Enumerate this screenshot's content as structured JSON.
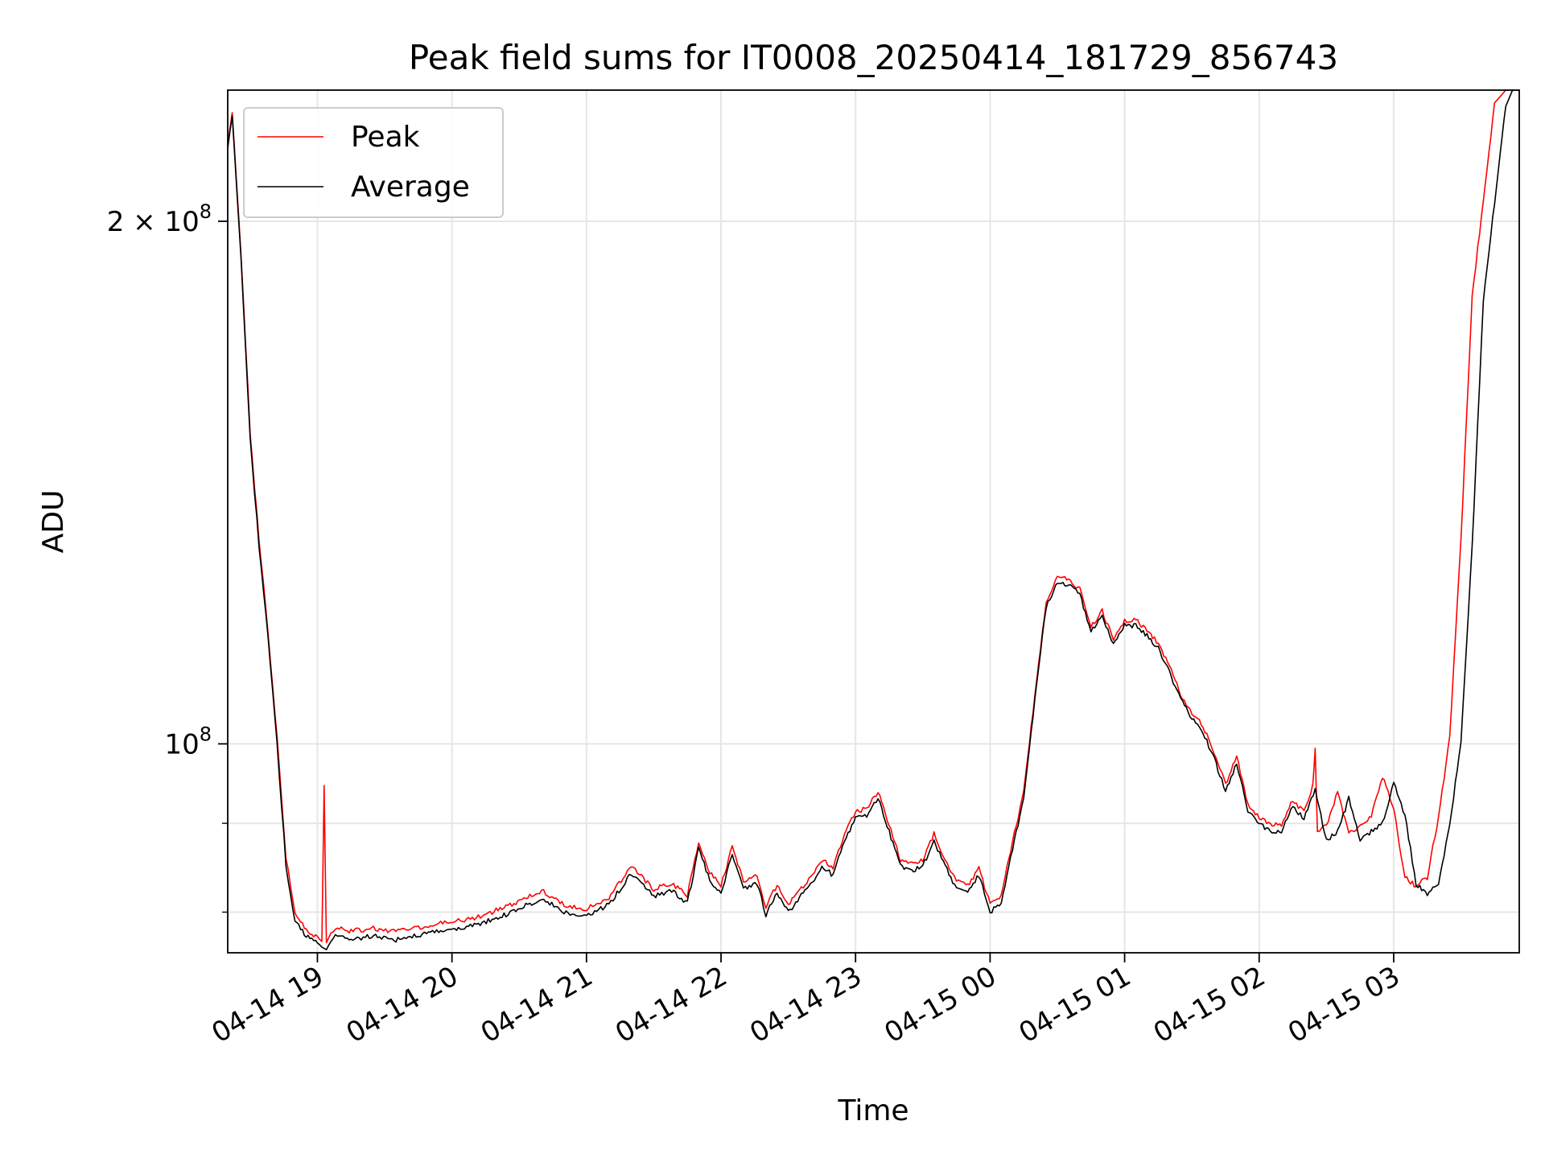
{
  "chart_data": {
    "type": "line",
    "title": "Peak field sums for IT0008_20250414_181729_856743",
    "xlabel": "Time",
    "ylabel": "ADU",
    "yscale": "log",
    "grid": true,
    "legend_placement": "top-left",
    "x_ticks": [
      "04-14 19",
      "04-14 20",
      "04-14 21",
      "04-14 22",
      "04-14 23",
      "04-15 00",
      "04-15 01",
      "04-15 02",
      "04-15 03"
    ],
    "x_tick_times": [
      "2025-04-14 19:00",
      "2025-04-14 20:00",
      "2025-04-14 21:00",
      "2025-04-14 22:00",
      "2025-04-14 23:00",
      "2025-04-15 00:00",
      "2025-04-15 01:00",
      "2025-04-15 02:00",
      "2025-04-15 03:00"
    ],
    "xlim": [
      "2025-04-14 18:20",
      "2025-04-15 03:56"
    ],
    "y_ticks": [
      {
        "value": 100000000,
        "mantissa": "",
        "base": "10",
        "exp": "8"
      },
      {
        "value": 200000000,
        "mantissa": "2 × ",
        "base": "10",
        "exp": "8"
      }
    ],
    "ylim": [
      75800000,
      238000000
    ],
    "minor_y_ticks": [
      80000000,
      90000000
    ],
    "series": [
      {
        "name": "Average",
        "color": "#000000",
        "x": [
          "2025-04-14 18:20",
          "2025-04-14 18:22",
          "2025-04-14 18:26",
          "2025-04-14 18:30",
          "2025-04-14 18:34",
          "2025-04-14 18:38",
          "2025-04-14 18:42",
          "2025-04-14 18:46",
          "2025-04-14 18:50",
          "2025-04-14 18:55",
          "2025-04-14 19:00",
          "2025-04-14 19:04",
          "2025-04-14 19:08",
          "2025-04-14 19:15",
          "2025-04-14 19:25",
          "2025-04-14 19:35",
          "2025-04-14 19:45",
          "2025-04-14 19:55",
          "2025-04-14 20:10",
          "2025-04-14 20:25",
          "2025-04-14 20:40",
          "2025-04-14 20:50",
          "2025-04-14 21:00",
          "2025-04-14 21:10",
          "2025-04-14 21:20",
          "2025-04-14 21:30",
          "2025-04-14 21:38",
          "2025-04-14 21:45",
          "2025-04-14 21:50",
          "2025-04-14 21:55",
          "2025-04-14 22:00",
          "2025-04-14 22:05",
          "2025-04-14 22:10",
          "2025-04-14 22:16",
          "2025-04-14 22:20",
          "2025-04-14 22:25",
          "2025-04-14 22:30",
          "2025-04-14 22:35",
          "2025-04-14 22:40",
          "2025-04-14 22:45",
          "2025-04-14 22:50",
          "2025-04-14 22:55",
          "2025-04-14 23:00",
          "2025-04-14 23:05",
          "2025-04-14 23:10",
          "2025-04-14 23:15",
          "2025-04-14 23:20",
          "2025-04-14 23:25",
          "2025-04-14 23:30",
          "2025-04-14 23:35",
          "2025-04-14 23:40",
          "2025-04-14 23:45",
          "2025-04-14 23:50",
          "2025-04-14 23:55",
          "2025-04-15 00:00",
          "2025-04-15 00:05",
          "2025-04-15 00:10",
          "2025-04-15 00:15",
          "2025-04-15 00:20",
          "2025-04-15 00:25",
          "2025-04-15 00:30",
          "2025-04-15 00:35",
          "2025-04-15 00:40",
          "2025-04-15 00:45",
          "2025-04-15 00:50",
          "2025-04-15 00:55",
          "2025-04-15 01:00",
          "2025-04-15 01:05",
          "2025-04-15 01:10",
          "2025-04-15 01:15",
          "2025-04-15 01:20",
          "2025-04-15 01:25",
          "2025-04-15 01:30",
          "2025-04-15 01:35",
          "2025-04-15 01:40",
          "2025-04-15 01:45",
          "2025-04-15 01:50",
          "2025-04-15 01:55",
          "2025-04-15 02:00",
          "2025-04-15 02:05",
          "2025-04-15 02:10",
          "2025-04-15 02:15",
          "2025-04-15 02:20",
          "2025-04-15 02:25",
          "2025-04-15 02:30",
          "2025-04-15 02:35",
          "2025-04-15 02:40",
          "2025-04-15 02:45",
          "2025-04-15 02:50",
          "2025-04-15 02:55",
          "2025-04-15 03:00",
          "2025-04-15 03:05",
          "2025-04-15 03:10",
          "2025-04-15 03:15",
          "2025-04-15 03:20",
          "2025-04-15 03:25",
          "2025-04-15 03:30",
          "2025-04-15 03:35",
          "2025-04-15 03:40",
          "2025-04-15 03:45",
          "2025-04-15 03:50",
          "2025-04-15 03:53",
          "2025-04-15 03:56"
        ],
        "values": [
          220000000,
          230000000,
          190000000,
          150000000,
          130000000,
          115000000,
          100000000,
          85000000,
          79000000,
          77500000,
          76800000,
          76200000,
          77500000,
          77200000,
          77500000,
          77100000,
          77600000,
          78000000,
          78600000,
          79800000,
          81500000,
          80000000,
          79500000,
          80800000,
          84200000,
          81700000,
          82300000,
          81000000,
          87000000,
          83500000,
          82000000,
          86500000,
          82500000,
          83200000,
          79700000,
          82200000,
          80000000,
          81500000,
          83000000,
          85000000,
          84000000,
          88000000,
          90500000,
          91000000,
          93000000,
          89000000,
          85000000,
          84500000,
          85000000,
          88000000,
          85000000,
          82500000,
          82000000,
          84000000,
          80000000,
          81000000,
          87000000,
          93000000,
          106000000,
          120000000,
          124000000,
          123500000,
          122000000,
          116000000,
          118500000,
          114000000,
          117000000,
          117000000,
          115500000,
          113500000,
          110000000,
          106000000,
          103500000,
          101500000,
          98000000,
          94000000,
          97500000,
          91500000,
          90000000,
          89000000,
          89000000,
          92000000,
          90500000,
          94000000,
          88000000,
          89000000,
          93000000,
          88000000,
          89000000,
          90000000,
          95000000,
          91000000,
          83000000,
          82000000,
          83000000,
          90000000,
          100000000,
          130000000,
          180000000,
          205000000,
          233000000,
          238000000,
          238000000
        ]
      },
      {
        "name": "Peak",
        "color": "#ff0000",
        "x": [
          "2025-04-14 18:20",
          "2025-04-14 18:22",
          "2025-04-14 18:26",
          "2025-04-14 18:30",
          "2025-04-14 18:34",
          "2025-04-14 18:38",
          "2025-04-14 18:42",
          "2025-04-14 18:46",
          "2025-04-14 18:50",
          "2025-04-14 18:55",
          "2025-04-14 19:00",
          "2025-04-14 19:02",
          "2025-04-14 19:03",
          "2025-04-14 19:04",
          "2025-04-14 19:08",
          "2025-04-14 19:15",
          "2025-04-14 19:25",
          "2025-04-14 19:35",
          "2025-04-14 19:45",
          "2025-04-14 19:55",
          "2025-04-14 20:10",
          "2025-04-14 20:25",
          "2025-04-14 20:40",
          "2025-04-14 20:50",
          "2025-04-14 21:00",
          "2025-04-14 21:10",
          "2025-04-14 21:20",
          "2025-04-14 21:30",
          "2025-04-14 21:38",
          "2025-04-14 21:45",
          "2025-04-14 21:50",
          "2025-04-14 21:55",
          "2025-04-14 22:00",
          "2025-04-14 22:05",
          "2025-04-14 22:10",
          "2025-04-14 22:16",
          "2025-04-14 22:20",
          "2025-04-14 22:25",
          "2025-04-14 22:30",
          "2025-04-14 22:35",
          "2025-04-14 22:40",
          "2025-04-14 22:45",
          "2025-04-14 22:50",
          "2025-04-14 22:55",
          "2025-04-14 23:00",
          "2025-04-14 23:05",
          "2025-04-14 23:10",
          "2025-04-14 23:15",
          "2025-04-14 23:20",
          "2025-04-14 23:25",
          "2025-04-14 23:30",
          "2025-04-14 23:35",
          "2025-04-14 23:40",
          "2025-04-14 23:45",
          "2025-04-14 23:50",
          "2025-04-14 23:55",
          "2025-04-15 00:00",
          "2025-04-15 00:05",
          "2025-04-15 00:10",
          "2025-04-15 00:15",
          "2025-04-15 00:20",
          "2025-04-15 00:25",
          "2025-04-15 00:30",
          "2025-04-15 00:35",
          "2025-04-15 00:40",
          "2025-04-15 00:45",
          "2025-04-15 00:50",
          "2025-04-15 00:55",
          "2025-04-15 01:00",
          "2025-04-15 01:05",
          "2025-04-15 01:10",
          "2025-04-15 01:15",
          "2025-04-15 01:20",
          "2025-04-15 01:25",
          "2025-04-15 01:30",
          "2025-04-15 01:35",
          "2025-04-15 01:40",
          "2025-04-15 01:45",
          "2025-04-15 01:50",
          "2025-04-15 01:55",
          "2025-04-15 02:00",
          "2025-04-15 02:05",
          "2025-04-15 02:10",
          "2025-04-15 02:15",
          "2025-04-15 02:20",
          "2025-04-15 02:24",
          "2025-04-15 02:25",
          "2025-04-15 02:26",
          "2025-04-15 02:30",
          "2025-04-15 02:35",
          "2025-04-15 02:40",
          "2025-04-15 02:45",
          "2025-04-15 02:50",
          "2025-04-15 02:55",
          "2025-04-15 03:00",
          "2025-04-15 03:05",
          "2025-04-15 03:10",
          "2025-04-15 03:15",
          "2025-04-15 03:20",
          "2025-04-15 03:25",
          "2025-04-15 03:30",
          "2025-04-15 03:35",
          "2025-04-15 03:40",
          "2025-04-15 03:45",
          "2025-04-15 03:50",
          "2025-04-15 03:53",
          "2025-04-15 03:56"
        ],
        "values": [
          221000000,
          231000000,
          191000000,
          151000000,
          131000000,
          116000000,
          101000000,
          86000000,
          80000000,
          78200000,
          77300000,
          76800000,
          94500000,
          77000000,
          78400000,
          78000000,
          78300000,
          77900000,
          78400000,
          78800000,
          79400000,
          80600000,
          82300000,
          80800000,
          80300000,
          81600000,
          85000000,
          82500000,
          83100000,
          81800000,
          87800000,
          84300000,
          82800000,
          87300000,
          83300000,
          84000000,
          80500000,
          83000000,
          80800000,
          82300000,
          83800000,
          85800000,
          84800000,
          88800000,
          91300000,
          91800000,
          93800000,
          89800000,
          85800000,
          85300000,
          85800000,
          88800000,
          85800000,
          83300000,
          82800000,
          84800000,
          80800000,
          81800000,
          87800000,
          93800000,
          106800000,
          120800000,
          124800000,
          124300000,
          122800000,
          116800000,
          119300000,
          114800000,
          117800000,
          117800000,
          116300000,
          114300000,
          110800000,
          106800000,
          104300000,
          102300000,
          98800000,
          94800000,
          98300000,
          92300000,
          90800000,
          89800000,
          89800000,
          92800000,
          91300000,
          94800000,
          99500000,
          88800000,
          89800000,
          93800000,
          88800000,
          89800000,
          90800000,
          95800000,
          91800000,
          83800000,
          82800000,
          83800000,
          90800000,
          100800000,
          131000000,
          181000000,
          206000000,
          234000000,
          238000000,
          238000000,
          238000000
        ]
      }
    ]
  }
}
